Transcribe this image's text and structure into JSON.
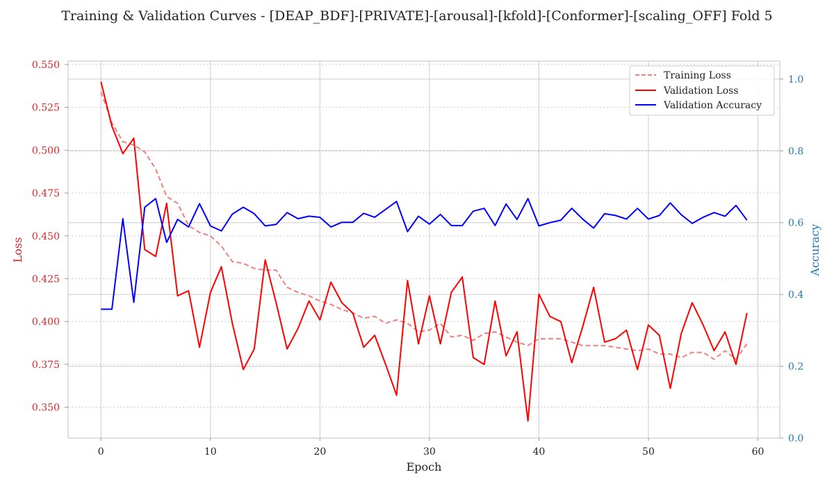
{
  "chart_data": {
    "type": "line",
    "title": "Training & Validation Curves - [DEAP_BDF]-[PRIVATE]-[arousal]-[kfold]-[Conformer]-[scaling_OFF] Fold 5",
    "xlabel": "Epoch",
    "ylabel_left": "Loss",
    "ylabel_right": "Accuracy",
    "xlim": [
      -3,
      62
    ],
    "ylim_left": [
      0.332,
      0.552
    ],
    "ylim_right": [
      0.0,
      1.05
    ],
    "x_ticks": [
      0,
      10,
      20,
      30,
      40,
      50,
      60
    ],
    "x_tick_labels": [
      "0",
      "10",
      "20",
      "30",
      "40",
      "50",
      "60"
    ],
    "y_left_ticks": [
      0.35,
      0.375,
      0.4,
      0.425,
      0.45,
      0.475,
      0.5,
      0.525,
      0.55
    ],
    "y_left_tick_labels": [
      "0.350",
      "0.375",
      "0.400",
      "0.425",
      "0.450",
      "0.475",
      "0.500",
      "0.525",
      "0.550"
    ],
    "y_right_ticks": [
      0.0,
      0.2,
      0.4,
      0.6,
      0.8,
      1.0
    ],
    "y_right_tick_labels": [
      "0.0",
      "0.2",
      "0.4",
      "0.6",
      "0.8",
      "1.0"
    ],
    "grid": true,
    "legend_position": "top-right",
    "colors": {
      "training_loss": "#f08080",
      "validation_loss": "#ff0000",
      "validation_accuracy": "#0000ff",
      "left_axis": "#d62728",
      "right_axis": "#1f77b4",
      "grid_major": "#cccccc",
      "grid_minor": "#cccccc",
      "spine": "#cccccc",
      "text": "#222222"
    },
    "x": [
      0,
      1,
      2,
      3,
      4,
      5,
      6,
      7,
      8,
      9,
      10,
      11,
      12,
      13,
      14,
      15,
      16,
      17,
      18,
      19,
      20,
      21,
      22,
      23,
      24,
      25,
      26,
      27,
      28,
      29,
      30,
      31,
      32,
      33,
      34,
      35,
      36,
      37,
      38,
      39,
      40,
      41,
      42,
      43,
      44,
      45,
      46,
      47,
      48,
      49,
      50,
      51,
      52,
      53,
      54,
      55,
      56,
      57,
      58,
      59
    ],
    "series": [
      {
        "name": "Training Loss",
        "axis": "left",
        "style": "dashed",
        "values": [
          0.534,
          0.516,
          0.505,
          0.503,
          0.499,
          0.489,
          0.473,
          0.469,
          0.456,
          0.452,
          0.45,
          0.444,
          0.435,
          0.434,
          0.431,
          0.43,
          0.43,
          0.42,
          0.417,
          0.415,
          0.412,
          0.41,
          0.407,
          0.405,
          0.402,
          0.403,
          0.399,
          0.401,
          0.399,
          0.394,
          0.395,
          0.399,
          0.391,
          0.392,
          0.389,
          0.393,
          0.394,
          0.391,
          0.388,
          0.386,
          0.39,
          0.39,
          0.39,
          0.388,
          0.386,
          0.386,
          0.386,
          0.385,
          0.384,
          0.383,
          0.384,
          0.381,
          0.381,
          0.379,
          0.382,
          0.382,
          0.378,
          0.383,
          0.378,
          0.387
        ]
      },
      {
        "name": "Validation Loss",
        "axis": "left",
        "style": "solid",
        "values": [
          0.54,
          0.514,
          0.498,
          0.507,
          0.442,
          0.438,
          0.469,
          0.415,
          0.418,
          0.385,
          0.417,
          0.432,
          0.399,
          0.372,
          0.384,
          0.436,
          0.411,
          0.384,
          0.396,
          0.412,
          0.401,
          0.423,
          0.411,
          0.405,
          0.385,
          0.392,
          0.375,
          0.357,
          0.424,
          0.387,
          0.415,
          0.387,
          0.417,
          0.426,
          0.379,
          0.375,
          0.412,
          0.38,
          0.394,
          0.342,
          0.416,
          0.403,
          0.4,
          0.376,
          0.397,
          0.42,
          0.388,
          0.39,
          0.395,
          0.372,
          0.398,
          0.392,
          0.361,
          0.393,
          0.411,
          0.398,
          0.383,
          0.394,
          0.375,
          0.405
        ]
      },
      {
        "name": "Validation Accuracy",
        "axis": "right",
        "style": "solid",
        "values": [
          0.359,
          0.359,
          0.611,
          0.378,
          0.643,
          0.667,
          0.545,
          0.609,
          0.588,
          0.653,
          0.591,
          0.577,
          0.624,
          0.643,
          0.625,
          0.591,
          0.595,
          0.628,
          0.611,
          0.618,
          0.615,
          0.588,
          0.601,
          0.601,
          0.626,
          0.615,
          0.637,
          0.659,
          0.575,
          0.618,
          0.596,
          0.623,
          0.592,
          0.592,
          0.632,
          0.64,
          0.592,
          0.652,
          0.609,
          0.667,
          0.591,
          0.6,
          0.607,
          0.64,
          0.61,
          0.585,
          0.625,
          0.62,
          0.61,
          0.64,
          0.61,
          0.62,
          0.655,
          0.622,
          0.598,
          0.615,
          0.628,
          0.618,
          0.648,
          0.607
        ]
      }
    ]
  }
}
